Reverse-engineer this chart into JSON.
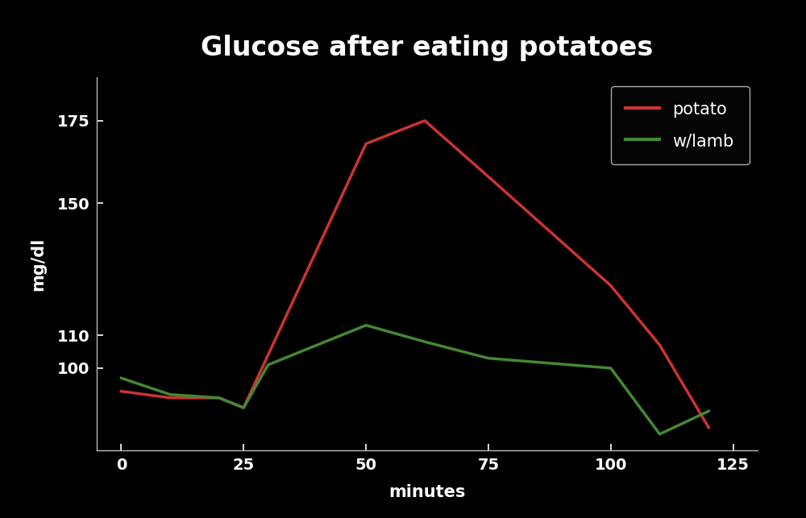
{
  "title": "Glucose after eating potatoes",
  "xlabel": "minutes",
  "ylabel": "mg/dl",
  "background_color": "#000000",
  "text_color": "#ffffff",
  "potato_color": "#cc3333",
  "lamb_color": "#448833",
  "potato_x": [
    0,
    10,
    20,
    25,
    50,
    62,
    75,
    100,
    110,
    120
  ],
  "potato_y": [
    93,
    91,
    91,
    88,
    168,
    175,
    158,
    125,
    107,
    82
  ],
  "lamb_x": [
    0,
    10,
    20,
    25,
    30,
    50,
    62,
    75,
    100,
    110,
    120
  ],
  "lamb_y": [
    97,
    92,
    91,
    88,
    101,
    113,
    108,
    103,
    100,
    80,
    87
  ],
  "xticks": [
    0,
    25,
    50,
    75,
    100,
    125
  ],
  "yticks": [
    100,
    110,
    150,
    175
  ],
  "xlim": [
    -5,
    130
  ],
  "ylim": [
    75,
    188
  ],
  "linewidth": 2.5,
  "title_fontsize": 24,
  "label_fontsize": 15,
  "tick_fontsize": 14,
  "legend_fontsize": 15,
  "legend_facecolor": "#050505",
  "legend_edgecolor": "#aaaaaa"
}
